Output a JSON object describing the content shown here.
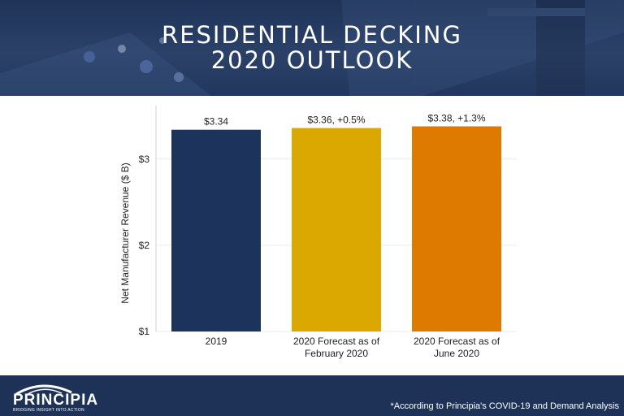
{
  "header": {
    "title_line1": "RESIDENTIAL DECKING",
    "title_line2": "2020 OUTLOOK"
  },
  "footer": {
    "logo_text": "PRINCIPIA",
    "logo_tagline": "BRIDGING INSIGHT INTO ACTION",
    "footnote": "*According to Principia's COVID-19 and Demand Analysis"
  },
  "colors": {
    "navy": "#1c335b",
    "gold": "#daa800",
    "orange": "#de7a00"
  },
  "chart_data": {
    "type": "bar",
    "title": "",
    "xlabel": "",
    "ylabel": "Net Manufacturer Revenue ($ B)",
    "ylim": [
      1,
      3.62
    ],
    "yticks": [
      {
        "value": 1,
        "label": "$1"
      },
      {
        "value": 2,
        "label": "$2"
      },
      {
        "value": 3,
        "label": "$3"
      }
    ],
    "grid": true,
    "categories": [
      [
        "2019"
      ],
      [
        "2020 Forecast as of",
        "February 2020"
      ],
      [
        "2020 Forecast as of",
        "June 2020"
      ]
    ],
    "values": [
      3.34,
      3.36,
      3.38
    ],
    "data_labels": [
      "$3.34",
      "$3.36, +0.5%",
      "$3.38, +1.3%"
    ],
    "bar_colors": [
      "#1c335b",
      "#daa800",
      "#de7a00"
    ]
  }
}
